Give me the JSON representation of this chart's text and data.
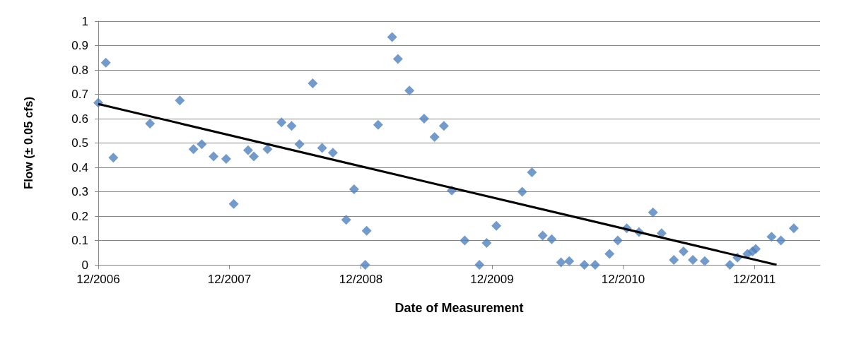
{
  "chart_data": {
    "type": "scatter",
    "xlabel": "Date of Measurement",
    "ylabel": "Flow (± 0.05 cfs)",
    "xlim": [
      "2006-12-01",
      "2012-06-01"
    ],
    "xticks": [
      {
        "value": "2006-12-01",
        "label": "12/2006"
      },
      {
        "value": "2007-12-01",
        "label": "12/2007"
      },
      {
        "value": "2008-12-01",
        "label": "12/2008"
      },
      {
        "value": "2009-12-01",
        "label": "12/2009"
      },
      {
        "value": "2010-12-01",
        "label": "12/2010"
      },
      {
        "value": "2011-12-01",
        "label": "12/2011"
      }
    ],
    "ylim": [
      0,
      1
    ],
    "yticks": [
      0,
      0.1,
      0.2,
      0.3,
      0.4,
      0.5,
      0.6,
      0.7,
      0.8,
      0.9,
      1
    ],
    "grid": "y",
    "series": [
      {
        "color": "#4f81bd",
        "marker": "diamond",
        "x": [
          "2006-12-01",
          "2006-12-22",
          "2007-01-12",
          "2007-04-24",
          "2007-07-16",
          "2007-08-23",
          "2007-09-15",
          "2007-10-18",
          "2007-11-22",
          "2007-12-13",
          "2008-01-22",
          "2008-02-07",
          "2008-03-16",
          "2008-04-24",
          "2008-05-22",
          "2008-06-13",
          "2008-07-20",
          "2008-08-15",
          "2008-09-14",
          "2008-10-21",
          "2008-11-12",
          "2008-12-13",
          "2008-12-17",
          "2009-01-18",
          "2009-02-26",
          "2009-03-14",
          "2009-04-15",
          "2009-05-26",
          "2009-06-24",
          "2009-07-20",
          "2009-08-11",
          "2009-09-16",
          "2009-10-27",
          "2009-11-16",
          "2009-12-13",
          "2010-02-23",
          "2010-03-22",
          "2010-04-21",
          "2010-05-16",
          "2010-06-11",
          "2010-07-04",
          "2010-08-15",
          "2010-09-14",
          "2010-10-24",
          "2010-11-16",
          "2010-12-11",
          "2011-01-14",
          "2011-02-22",
          "2011-03-18",
          "2011-04-21",
          "2011-05-18",
          "2011-06-13",
          "2011-07-16",
          "2011-09-24",
          "2011-10-15",
          "2011-11-12",
          "2011-11-26",
          "2011-12-05",
          "2012-01-18",
          "2012-02-13",
          "2012-03-20"
        ],
        "values": [
          0.665,
          0.83,
          0.44,
          0.58,
          0.675,
          0.475,
          0.495,
          0.445,
          0.435,
          0.25,
          0.47,
          0.445,
          0.475,
          0.585,
          0.57,
          0.495,
          0.745,
          0.48,
          0.46,
          0.185,
          0.31,
          0.0,
          0.14,
          0.575,
          0.935,
          0.845,
          0.715,
          0.6,
          0.525,
          0.57,
          0.305,
          0.1,
          0.0,
          0.09,
          0.16,
          0.3,
          0.38,
          0.12,
          0.105,
          0.01,
          0.015,
          0.0,
          0.0,
          0.045,
          0.1,
          0.15,
          0.135,
          0.215,
          0.13,
          0.02,
          0.055,
          0.02,
          0.015,
          0.0,
          0.03,
          0.045,
          0.055,
          0.065,
          0.115,
          0.1,
          0.15
        ]
      },
      {
        "type": "line",
        "color": "#000000",
        "marker": "none",
        "line_style": "solid",
        "x": [
          "2006-12-01",
          "2012-02-01"
        ],
        "values": [
          0.66,
          0
        ]
      }
    ]
  }
}
